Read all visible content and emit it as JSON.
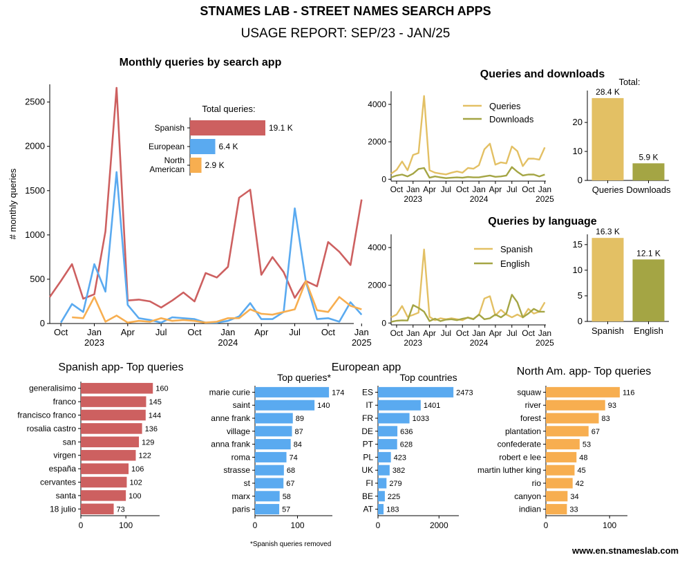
{
  "header": {
    "title": "STNAMES LAB - STREET NAMES SEARCH APPS",
    "subtitle": "USAGE REPORT: SEP/23 - JAN/25"
  },
  "footer": {
    "website": "www.en.stnameslab.com",
    "note": "*Spanish queries removed"
  },
  "colors": {
    "spanish_app": "#cd6060",
    "european_app": "#5aaaf0",
    "north_american_app": "#f7ae50",
    "gold": "#e3c064",
    "olive": "#a4a544"
  },
  "chart_data": [
    {
      "id": "monthly",
      "type": "line",
      "title": "Monthly queries by search app",
      "ylabel": "# monthly queries",
      "ylim": [
        0,
        2700
      ],
      "xlim": [
        0,
        27.3
      ],
      "yticks": [
        "0",
        "500",
        "1000",
        "1500",
        "2000",
        "2500"
      ],
      "xticks": [
        {
          "x": 1,
          "label": "Oct"
        },
        {
          "x": 4,
          "label": "Jan"
        },
        {
          "x": 7,
          "label": "Apr"
        },
        {
          "x": 10,
          "label": "Jul"
        },
        {
          "x": 13,
          "label": "Oct"
        },
        {
          "x": 16,
          "label": "Jan"
        },
        {
          "x": 19,
          "label": "Apr"
        },
        {
          "x": 22,
          "label": "Jul"
        },
        {
          "x": 25,
          "label": "Oct"
        },
        {
          "x": 28,
          "label": "Jan"
        }
      ],
      "years": [
        {
          "x": 4,
          "label": "2023"
        },
        {
          "x": 16,
          "label": "2024"
        },
        {
          "x": 28,
          "label": "2025"
        }
      ],
      "series": [
        {
          "name": "Spanish",
          "color": "#cd6060",
          "x": [
            0,
            1,
            2,
            3,
            4,
            5,
            6,
            7,
            8,
            9,
            10,
            11,
            12,
            13,
            14,
            15,
            16,
            17,
            18,
            19,
            20,
            21,
            22,
            23,
            24,
            25,
            26,
            27,
            28
          ],
          "values": [
            300,
            480,
            670,
            280,
            330,
            1040,
            2660,
            260,
            270,
            250,
            180,
            260,
            350,
            250,
            570,
            520,
            640,
            1420,
            1510,
            550,
            750,
            580,
            290,
            480,
            420,
            920,
            810,
            660,
            1400
          ]
        },
        {
          "name": "European",
          "color": "#5aaaf0",
          "x": [
            0,
            1,
            2,
            3,
            4,
            5,
            6,
            7,
            8,
            9,
            10,
            11,
            12,
            13,
            14,
            15,
            16,
            17,
            18,
            19,
            20,
            21,
            22,
            23,
            24,
            25,
            26,
            27,
            28
          ],
          "values": [
            null,
            10,
            220,
            130,
            670,
            360,
            1710,
            210,
            60,
            40,
            10,
            70,
            60,
            50,
            10,
            10,
            30,
            80,
            230,
            50,
            50,
            130,
            1300,
            470,
            50,
            60,
            20,
            240,
            100
          ]
        },
        {
          "name": "North American",
          "color": "#f7ae50",
          "x": [
            0,
            1,
            2,
            3,
            4,
            5,
            6,
            7,
            8,
            9,
            10,
            11,
            12,
            13,
            14,
            15,
            16,
            17,
            18,
            19,
            20,
            21,
            22,
            23,
            24,
            25,
            26,
            27,
            28
          ],
          "values": [
            null,
            null,
            70,
            60,
            300,
            20,
            90,
            10,
            30,
            20,
            60,
            30,
            40,
            30,
            10,
            20,
            60,
            60,
            160,
            110,
            100,
            130,
            160,
            480,
            150,
            130,
            300,
            200,
            160
          ]
        }
      ],
      "inset": {
        "title": "Total queries:",
        "categories": [
          "Spanish",
          "European",
          "North\nAmerican"
        ],
        "values": [
          19.1,
          6.4,
          2.9
        ],
        "labels": [
          "19.1 K",
          "6.4 K",
          "2.9 K"
        ],
        "colors": [
          "#cd6060",
          "#5aaaf0",
          "#f7ae50"
        ]
      }
    },
    {
      "id": "qd",
      "type": "line",
      "title": "Queries and downloads",
      "ylim": [
        -100,
        4700
      ],
      "xlim": [
        0,
        28.2
      ],
      "yticks": [
        "0",
        "2000",
        "4000"
      ],
      "xticks": [
        {
          "x": 1,
          "label": "Oct"
        },
        {
          "x": 4,
          "label": "Jan"
        },
        {
          "x": 7,
          "label": "Apr"
        },
        {
          "x": 10,
          "label": "Jul"
        },
        {
          "x": 13,
          "label": "Oct"
        },
        {
          "x": 16,
          "label": "Jan"
        },
        {
          "x": 19,
          "label": "Apr"
        },
        {
          "x": 22,
          "label": "Jul"
        },
        {
          "x": 25,
          "label": "Oct"
        },
        {
          "x": 28,
          "label": "Jan"
        }
      ],
      "years": [
        {
          "x": 4,
          "label": "2023"
        },
        {
          "x": 16,
          "label": "2024"
        },
        {
          "x": 28,
          "label": "2025"
        }
      ],
      "series": [
        {
          "name": "Queries",
          "color": "#e3c064",
          "x": [
            0,
            1,
            2,
            3,
            4,
            5,
            6,
            7,
            8,
            9,
            10,
            11,
            12,
            13,
            14,
            15,
            16,
            17,
            18,
            19,
            20,
            21,
            22,
            23,
            24,
            25,
            26,
            27,
            28
          ],
          "values": [
            300,
            500,
            950,
            480,
            1300,
            1400,
            4450,
            480,
            350,
            300,
            260,
            350,
            420,
            350,
            600,
            560,
            750,
            1600,
            1900,
            780,
            900,
            850,
            1750,
            1500,
            700,
            1100,
            1100,
            1050,
            1700
          ]
        },
        {
          "name": "Downloads",
          "color": "#a4a544",
          "x": [
            0,
            1,
            2,
            3,
            4,
            5,
            6,
            7,
            8,
            9,
            10,
            11,
            12,
            13,
            14,
            15,
            16,
            17,
            18,
            19,
            20,
            21,
            22,
            23,
            24,
            25,
            26,
            27,
            28
          ],
          "values": [
            100,
            200,
            250,
            150,
            300,
            550,
            600,
            80,
            150,
            100,
            60,
            80,
            100,
            80,
            120,
            100,
            100,
            150,
            200,
            130,
            150,
            200,
            650,
            400,
            200,
            250,
            250,
            150,
            250
          ]
        }
      ],
      "legend": [
        "Queries",
        "Downloads"
      ]
    },
    {
      "id": "qd_totals",
      "type": "bar",
      "title": "Total:",
      "categories": [
        "Queries",
        "Downloads"
      ],
      "values": [
        28.4,
        5.9
      ],
      "labels": [
        "28.4 K",
        "5.9 K"
      ],
      "colors": [
        "#e3c064",
        "#a4a544"
      ],
      "ylim": [
        0,
        31
      ],
      "yticks": [
        0,
        10,
        20
      ]
    },
    {
      "id": "lang",
      "type": "line",
      "title": "Queries by language",
      "ylim": [
        -100,
        4700
      ],
      "xlim": [
        0,
        28.2
      ],
      "yticks": [
        "0",
        "2000",
        "4000"
      ],
      "xticks": [
        {
          "x": 1,
          "label": "Oct"
        },
        {
          "x": 4,
          "label": "Jan"
        },
        {
          "x": 7,
          "label": "Apr"
        },
        {
          "x": 10,
          "label": "Jul"
        },
        {
          "x": 13,
          "label": "Oct"
        },
        {
          "x": 16,
          "label": "Jan"
        },
        {
          "x": 19,
          "label": "Apr"
        },
        {
          "x": 22,
          "label": "Jul"
        },
        {
          "x": 25,
          "label": "Oct"
        },
        {
          "x": 28,
          "label": "Jan"
        }
      ],
      "years": [
        {
          "x": 4,
          "label": "2023"
        },
        {
          "x": 16,
          "label": "2024"
        },
        {
          "x": 28,
          "label": "2025"
        }
      ],
      "series": [
        {
          "name": "Spanish",
          "color": "#e3c064",
          "x": [
            0,
            1,
            2,
            3,
            4,
            5,
            6,
            7,
            8,
            9,
            10,
            11,
            12,
            13,
            14,
            15,
            16,
            17,
            18,
            19,
            20,
            21,
            22,
            23,
            24,
            25,
            26,
            27,
            28
          ],
          "values": [
            300,
            450,
            900,
            330,
            430,
            550,
            3900,
            330,
            150,
            250,
            200,
            250,
            200,
            150,
            300,
            220,
            420,
            1300,
            1420,
            400,
            700,
            450,
            300,
            450,
            300,
            750,
            500,
            600,
            1100
          ]
        },
        {
          "name": "English",
          "color": "#a4a544",
          "x": [
            0,
            1,
            2,
            3,
            4,
            5,
            6,
            7,
            8,
            9,
            10,
            11,
            12,
            13,
            14,
            15,
            16,
            17,
            18,
            19,
            20,
            21,
            22,
            23,
            24,
            25,
            26,
            27,
            28
          ],
          "values": [
            60,
            120,
            140,
            130,
            950,
            800,
            600,
            100,
            230,
            100,
            180,
            200,
            150,
            230,
            280,
            200,
            450,
            200,
            250,
            450,
            300,
            500,
            1500,
            1100,
            300,
            500,
            750,
            600,
            600
          ]
        }
      ],
      "legend": [
        "Spanish",
        "English"
      ]
    },
    {
      "id": "lang_totals",
      "type": "bar",
      "categories": [
        "Spanish",
        "English"
      ],
      "values": [
        16.3,
        12.1
      ],
      "labels": [
        "16.3 K",
        "12.1 K"
      ],
      "colors": [
        "#e3c064",
        "#a4a544"
      ],
      "ylim": [
        0,
        17
      ],
      "yticks": [
        0,
        5,
        10,
        15
      ]
    },
    {
      "id": "spanish_top",
      "type": "bar",
      "orientation": "horizontal",
      "title": "Spanish app- Top queries",
      "categories": [
        "generalisimo",
        "franco",
        "francisco franco",
        "rosalia castro",
        "san",
        "virgen",
        "españa",
        "cervantes",
        "santa",
        "18 julio"
      ],
      "values": [
        160,
        145,
        144,
        136,
        129,
        122,
        106,
        102,
        100,
        73
      ],
      "xlim": [
        0,
        175
      ],
      "xticks": [
        0,
        100
      ],
      "color": "#cd6060"
    },
    {
      "id": "european_top",
      "type": "bar",
      "orientation": "horizontal",
      "section_title": "European app",
      "title": "Top queries*",
      "categories": [
        "marie curie",
        "saint",
        "anne frank",
        "village",
        "anna frank",
        "roma",
        "strasse",
        "st",
        "marx",
        "paris"
      ],
      "values": [
        174,
        140,
        89,
        87,
        84,
        74,
        68,
        67,
        58,
        57
      ],
      "xlim": [
        0,
        182
      ],
      "xticks": [
        0,
        100
      ],
      "color": "#5aaaf0"
    },
    {
      "id": "european_countries",
      "type": "bar",
      "orientation": "horizontal",
      "title": "Top countries",
      "categories": [
        "ES",
        "IT",
        "FR",
        "DE",
        "PT",
        "PL",
        "UK",
        "FI",
        "BE",
        "AT"
      ],
      "values": [
        2473,
        1401,
        1033,
        636,
        628,
        423,
        382,
        279,
        225,
        183
      ],
      "xlim": [
        0,
        2650
      ],
      "xticks": [
        0,
        2000
      ],
      "color": "#5aaaf0"
    },
    {
      "id": "north_am_top",
      "type": "bar",
      "orientation": "horizontal",
      "title": "North Am. app- Top queries",
      "categories": [
        "squaw",
        "river",
        "forest",
        "plantation",
        "confederate",
        "robert e lee",
        "martin luther king",
        "rio",
        "canyon",
        "indian"
      ],
      "values": [
        116,
        93,
        83,
        67,
        53,
        48,
        45,
        42,
        34,
        33
      ],
      "xlim": [
        0,
        128
      ],
      "xticks": [
        0,
        100
      ],
      "color": "#f7ae50"
    }
  ]
}
